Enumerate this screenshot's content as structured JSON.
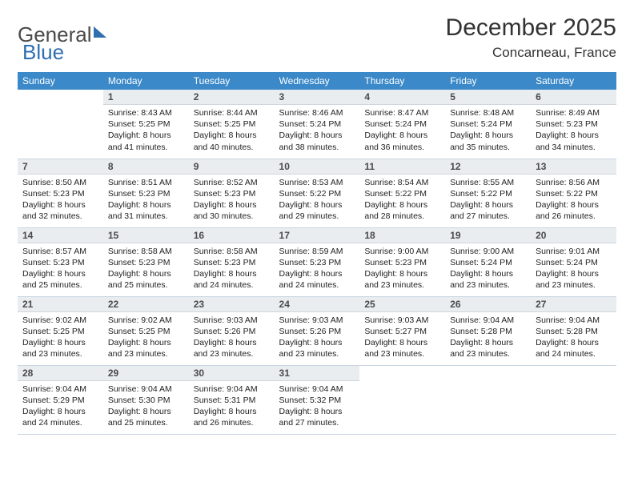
{
  "brand": {
    "part1": "General",
    "part2": "Blue"
  },
  "title": "December 2025",
  "location": "Concarneau, France",
  "colors": {
    "header_bg": "#3b89c8",
    "header_fg": "#ffffff",
    "daynum_bg": "#e9edf0",
    "border": "#c9d6e2",
    "brand_gray": "#4a4a4a",
    "brand_blue": "#2f6fb0"
  },
  "weekdays": [
    "Sunday",
    "Monday",
    "Tuesday",
    "Wednesday",
    "Thursday",
    "Friday",
    "Saturday"
  ],
  "weeks": [
    [
      {
        "empty": true
      },
      {
        "n": "1",
        "sr": "8:43 AM",
        "ss": "5:25 PM",
        "dl": "8 hours and 41 minutes."
      },
      {
        "n": "2",
        "sr": "8:44 AM",
        "ss": "5:25 PM",
        "dl": "8 hours and 40 minutes."
      },
      {
        "n": "3",
        "sr": "8:46 AM",
        "ss": "5:24 PM",
        "dl": "8 hours and 38 minutes."
      },
      {
        "n": "4",
        "sr": "8:47 AM",
        "ss": "5:24 PM",
        "dl": "8 hours and 36 minutes."
      },
      {
        "n": "5",
        "sr": "8:48 AM",
        "ss": "5:24 PM",
        "dl": "8 hours and 35 minutes."
      },
      {
        "n": "6",
        "sr": "8:49 AM",
        "ss": "5:23 PM",
        "dl": "8 hours and 34 minutes."
      }
    ],
    [
      {
        "n": "7",
        "sr": "8:50 AM",
        "ss": "5:23 PM",
        "dl": "8 hours and 32 minutes."
      },
      {
        "n": "8",
        "sr": "8:51 AM",
        "ss": "5:23 PM",
        "dl": "8 hours and 31 minutes."
      },
      {
        "n": "9",
        "sr": "8:52 AM",
        "ss": "5:23 PM",
        "dl": "8 hours and 30 minutes."
      },
      {
        "n": "10",
        "sr": "8:53 AM",
        "ss": "5:22 PM",
        "dl": "8 hours and 29 minutes."
      },
      {
        "n": "11",
        "sr": "8:54 AM",
        "ss": "5:22 PM",
        "dl": "8 hours and 28 minutes."
      },
      {
        "n": "12",
        "sr": "8:55 AM",
        "ss": "5:22 PM",
        "dl": "8 hours and 27 minutes."
      },
      {
        "n": "13",
        "sr": "8:56 AM",
        "ss": "5:22 PM",
        "dl": "8 hours and 26 minutes."
      }
    ],
    [
      {
        "n": "14",
        "sr": "8:57 AM",
        "ss": "5:23 PM",
        "dl": "8 hours and 25 minutes."
      },
      {
        "n": "15",
        "sr": "8:58 AM",
        "ss": "5:23 PM",
        "dl": "8 hours and 25 minutes."
      },
      {
        "n": "16",
        "sr": "8:58 AM",
        "ss": "5:23 PM",
        "dl": "8 hours and 24 minutes."
      },
      {
        "n": "17",
        "sr": "8:59 AM",
        "ss": "5:23 PM",
        "dl": "8 hours and 24 minutes."
      },
      {
        "n": "18",
        "sr": "9:00 AM",
        "ss": "5:23 PM",
        "dl": "8 hours and 23 minutes."
      },
      {
        "n": "19",
        "sr": "9:00 AM",
        "ss": "5:24 PM",
        "dl": "8 hours and 23 minutes."
      },
      {
        "n": "20",
        "sr": "9:01 AM",
        "ss": "5:24 PM",
        "dl": "8 hours and 23 minutes."
      }
    ],
    [
      {
        "n": "21",
        "sr": "9:02 AM",
        "ss": "5:25 PM",
        "dl": "8 hours and 23 minutes."
      },
      {
        "n": "22",
        "sr": "9:02 AM",
        "ss": "5:25 PM",
        "dl": "8 hours and 23 minutes."
      },
      {
        "n": "23",
        "sr": "9:03 AM",
        "ss": "5:26 PM",
        "dl": "8 hours and 23 minutes."
      },
      {
        "n": "24",
        "sr": "9:03 AM",
        "ss": "5:26 PM",
        "dl": "8 hours and 23 minutes."
      },
      {
        "n": "25",
        "sr": "9:03 AM",
        "ss": "5:27 PM",
        "dl": "8 hours and 23 minutes."
      },
      {
        "n": "26",
        "sr": "9:04 AM",
        "ss": "5:28 PM",
        "dl": "8 hours and 23 minutes."
      },
      {
        "n": "27",
        "sr": "9:04 AM",
        "ss": "5:28 PM",
        "dl": "8 hours and 24 minutes."
      }
    ],
    [
      {
        "n": "28",
        "sr": "9:04 AM",
        "ss": "5:29 PM",
        "dl": "8 hours and 24 minutes."
      },
      {
        "n": "29",
        "sr": "9:04 AM",
        "ss": "5:30 PM",
        "dl": "8 hours and 25 minutes."
      },
      {
        "n": "30",
        "sr": "9:04 AM",
        "ss": "5:31 PM",
        "dl": "8 hours and 26 minutes."
      },
      {
        "n": "31",
        "sr": "9:04 AM",
        "ss": "5:32 PM",
        "dl": "8 hours and 27 minutes."
      },
      {
        "empty": true
      },
      {
        "empty": true
      },
      {
        "empty": true
      }
    ]
  ],
  "labels": {
    "sunrise": "Sunrise:",
    "sunset": "Sunset:",
    "daylight": "Daylight:"
  }
}
